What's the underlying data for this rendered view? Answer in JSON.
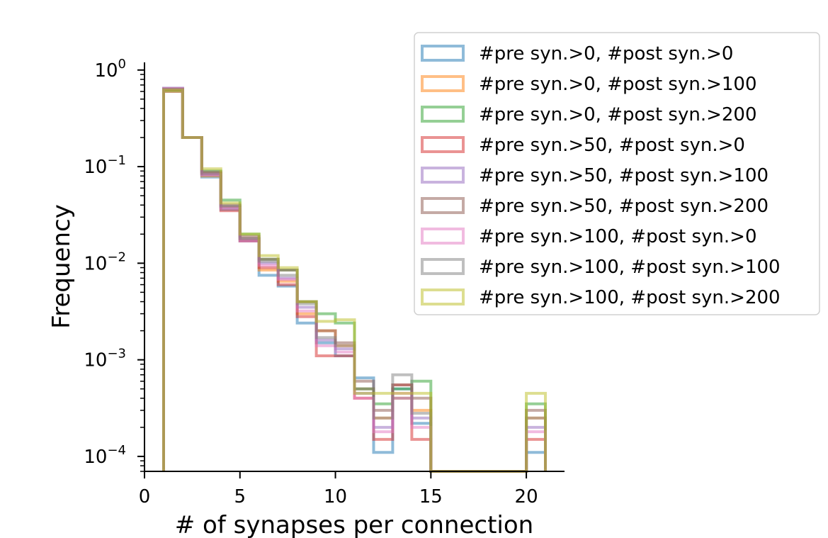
{
  "chart_data": {
    "type": "histogram",
    "xlabel": "# of synapses per connection",
    "ylabel": "Frequency",
    "xlim": [
      0,
      22
    ],
    "ylim": [
      7e-05,
      1.2
    ],
    "yscale": "log",
    "x_ticks": [
      0,
      5,
      10,
      15,
      20
    ],
    "y_ticks": [
      {
        "base": "10",
        "exp": "0",
        "value": 1
      },
      {
        "base": "10",
        "exp": "−1",
        "value": 0.1
      },
      {
        "base": "10",
        "exp": "−2",
        "value": 0.01
      },
      {
        "base": "10",
        "exp": "−3",
        "value": 0.001
      },
      {
        "base": "10",
        "exp": "−4",
        "value": 0.0001
      }
    ],
    "bin_edges": [
      1,
      2,
      3,
      4,
      5,
      6,
      7,
      8,
      9,
      10,
      11,
      12,
      13,
      14,
      15,
      16,
      17,
      18,
      19,
      20,
      21
    ],
    "legend_position": "upper-right",
    "series": [
      {
        "name": "#pre syn.>0, #post syn.>0",
        "color": "#1f77b4",
        "values": [
          0.6,
          0.2,
          0.078,
          0.036,
          0.017,
          0.0075,
          0.0058,
          0.0024,
          0.0015,
          0.0011,
          0.00065,
          0.00011,
          0.0005,
          0.00022,
          0,
          0,
          0,
          0,
          0,
          0.00011
        ]
      },
      {
        "name": "#pre syn.>0, #post syn.>100",
        "color": "#ff7f0e",
        "values": [
          0.6,
          0.2,
          0.08,
          0.038,
          0.018,
          0.0085,
          0.0065,
          0.003,
          0.002,
          0.0014,
          0.0005,
          0.00025,
          0.0004,
          0.0003,
          0,
          0,
          0,
          0,
          0,
          0.00025
        ]
      },
      {
        "name": "#pre syn.>0, #post syn.>200",
        "color": "#2ca02c",
        "values": [
          0.62,
          0.2,
          0.09,
          0.045,
          0.02,
          0.011,
          0.0085,
          0.004,
          0.003,
          0.0024,
          0.0005,
          0.00035,
          0.0005,
          0.0006,
          0,
          0,
          0,
          0,
          0,
          0.00035
        ]
      },
      {
        "name": "#pre syn.>50, #post syn.>0",
        "color": "#d62728",
        "values": [
          0.63,
          0.2,
          0.085,
          0.035,
          0.017,
          0.009,
          0.006,
          0.0028,
          0.0011,
          0.0011,
          0.0004,
          0.00015,
          0.00055,
          0.00015,
          0,
          0,
          0,
          0,
          0,
          0.00015
        ]
      },
      {
        "name": "#pre syn.>50, #post syn.>100",
        "color": "#9467bd",
        "values": [
          0.65,
          0.2,
          0.082,
          0.038,
          0.018,
          0.01,
          0.007,
          0.0035,
          0.0016,
          0.0013,
          0.00045,
          0.0002,
          0.0004,
          0.00025,
          0,
          0,
          0,
          0,
          0,
          0.0002
        ]
      },
      {
        "name": "#pre syn.>50, #post syn.>200",
        "color": "#8c564b",
        "values": [
          0.64,
          0.2,
          0.088,
          0.04,
          0.019,
          0.011,
          0.0085,
          0.004,
          0.002,
          0.0015,
          0.0006,
          0.0003,
          0.00055,
          0.0004,
          0,
          0,
          0,
          0,
          0,
          0.0003
        ]
      },
      {
        "name": "#pre syn.>100, #post syn.>0",
        "color": "#e377c2",
        "values": [
          0.64,
          0.2,
          0.083,
          0.037,
          0.017,
          0.0095,
          0.0068,
          0.0032,
          0.0014,
          0.0012,
          0.0004,
          0.00018,
          0.00045,
          0.0002,
          0,
          0,
          0,
          0,
          0,
          0.00018
        ]
      },
      {
        "name": "#pre syn.>100, #post syn.>100",
        "color": "#7f7f7f",
        "values": [
          0.63,
          0.2,
          0.085,
          0.039,
          0.018,
          0.0105,
          0.0075,
          0.0038,
          0.0017,
          0.0014,
          0.0005,
          0.00025,
          0.0007,
          0.00028,
          0,
          0,
          0,
          0,
          0,
          0.00025
        ]
      },
      {
        "name": "#pre syn.>100, #post syn.>200",
        "color": "#bcbd22",
        "values": [
          0.62,
          0.2,
          0.095,
          0.042,
          0.02,
          0.012,
          0.009,
          0.004,
          0.0025,
          0.0026,
          0.00045,
          0.00045,
          0.00045,
          0.00045,
          0,
          0,
          0,
          0,
          0,
          0.00045
        ]
      }
    ]
  }
}
